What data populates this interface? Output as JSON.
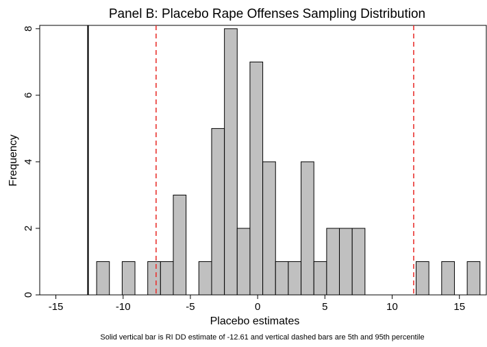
{
  "chart_data": {
    "type": "bar",
    "title": "Panel B: Placebo Rape Offenses Sampling Distribution",
    "xlabel": "Placebo estimates",
    "ylabel": "Frequency",
    "note": "Solid vertical bar is RI DD estimate of -12.61 and vertical dashed bars are 5th and 95th percentile",
    "xlim": [
      -16.2,
      17.0
    ],
    "ylim": [
      0,
      8.1
    ],
    "x_ticks": [
      -15,
      -10,
      -5,
      0,
      5,
      10,
      15
    ],
    "y_ticks": [
      0,
      2,
      4,
      6,
      8
    ],
    "grid": false,
    "bin_width": 0.95,
    "bins": [
      {
        "start": -11.97,
        "count": 1
      },
      {
        "start": -10.07,
        "count": 1
      },
      {
        "start": -8.17,
        "count": 1
      },
      {
        "start": -7.22,
        "count": 1
      },
      {
        "start": -6.27,
        "count": 3
      },
      {
        "start": -4.37,
        "count": 1
      },
      {
        "start": -3.42,
        "count": 5
      },
      {
        "start": -2.47,
        "count": 8
      },
      {
        "start": -1.52,
        "count": 2
      },
      {
        "start": -0.57,
        "count": 7
      },
      {
        "start": 0.38,
        "count": 4
      },
      {
        "start": 1.33,
        "count": 1
      },
      {
        "start": 2.28,
        "count": 1
      },
      {
        "start": 3.23,
        "count": 4
      },
      {
        "start": 4.18,
        "count": 1
      },
      {
        "start": 5.13,
        "count": 2
      },
      {
        "start": 6.08,
        "count": 2
      },
      {
        "start": 7.03,
        "count": 2
      },
      {
        "start": 11.78,
        "count": 1
      },
      {
        "start": 13.68,
        "count": 1
      },
      {
        "start": 15.58,
        "count": 1
      }
    ],
    "reference_lines": [
      {
        "value": -12.61,
        "style": "solid",
        "color": "#000000"
      },
      {
        "value": -7.55,
        "style": "dashed",
        "color": "#e8312e"
      },
      {
        "value": 11.6,
        "style": "dashed",
        "color": "#e8312e"
      }
    ],
    "colors": {
      "bar_fill": "#c0c0c0",
      "bar_stroke": "#000000"
    }
  }
}
